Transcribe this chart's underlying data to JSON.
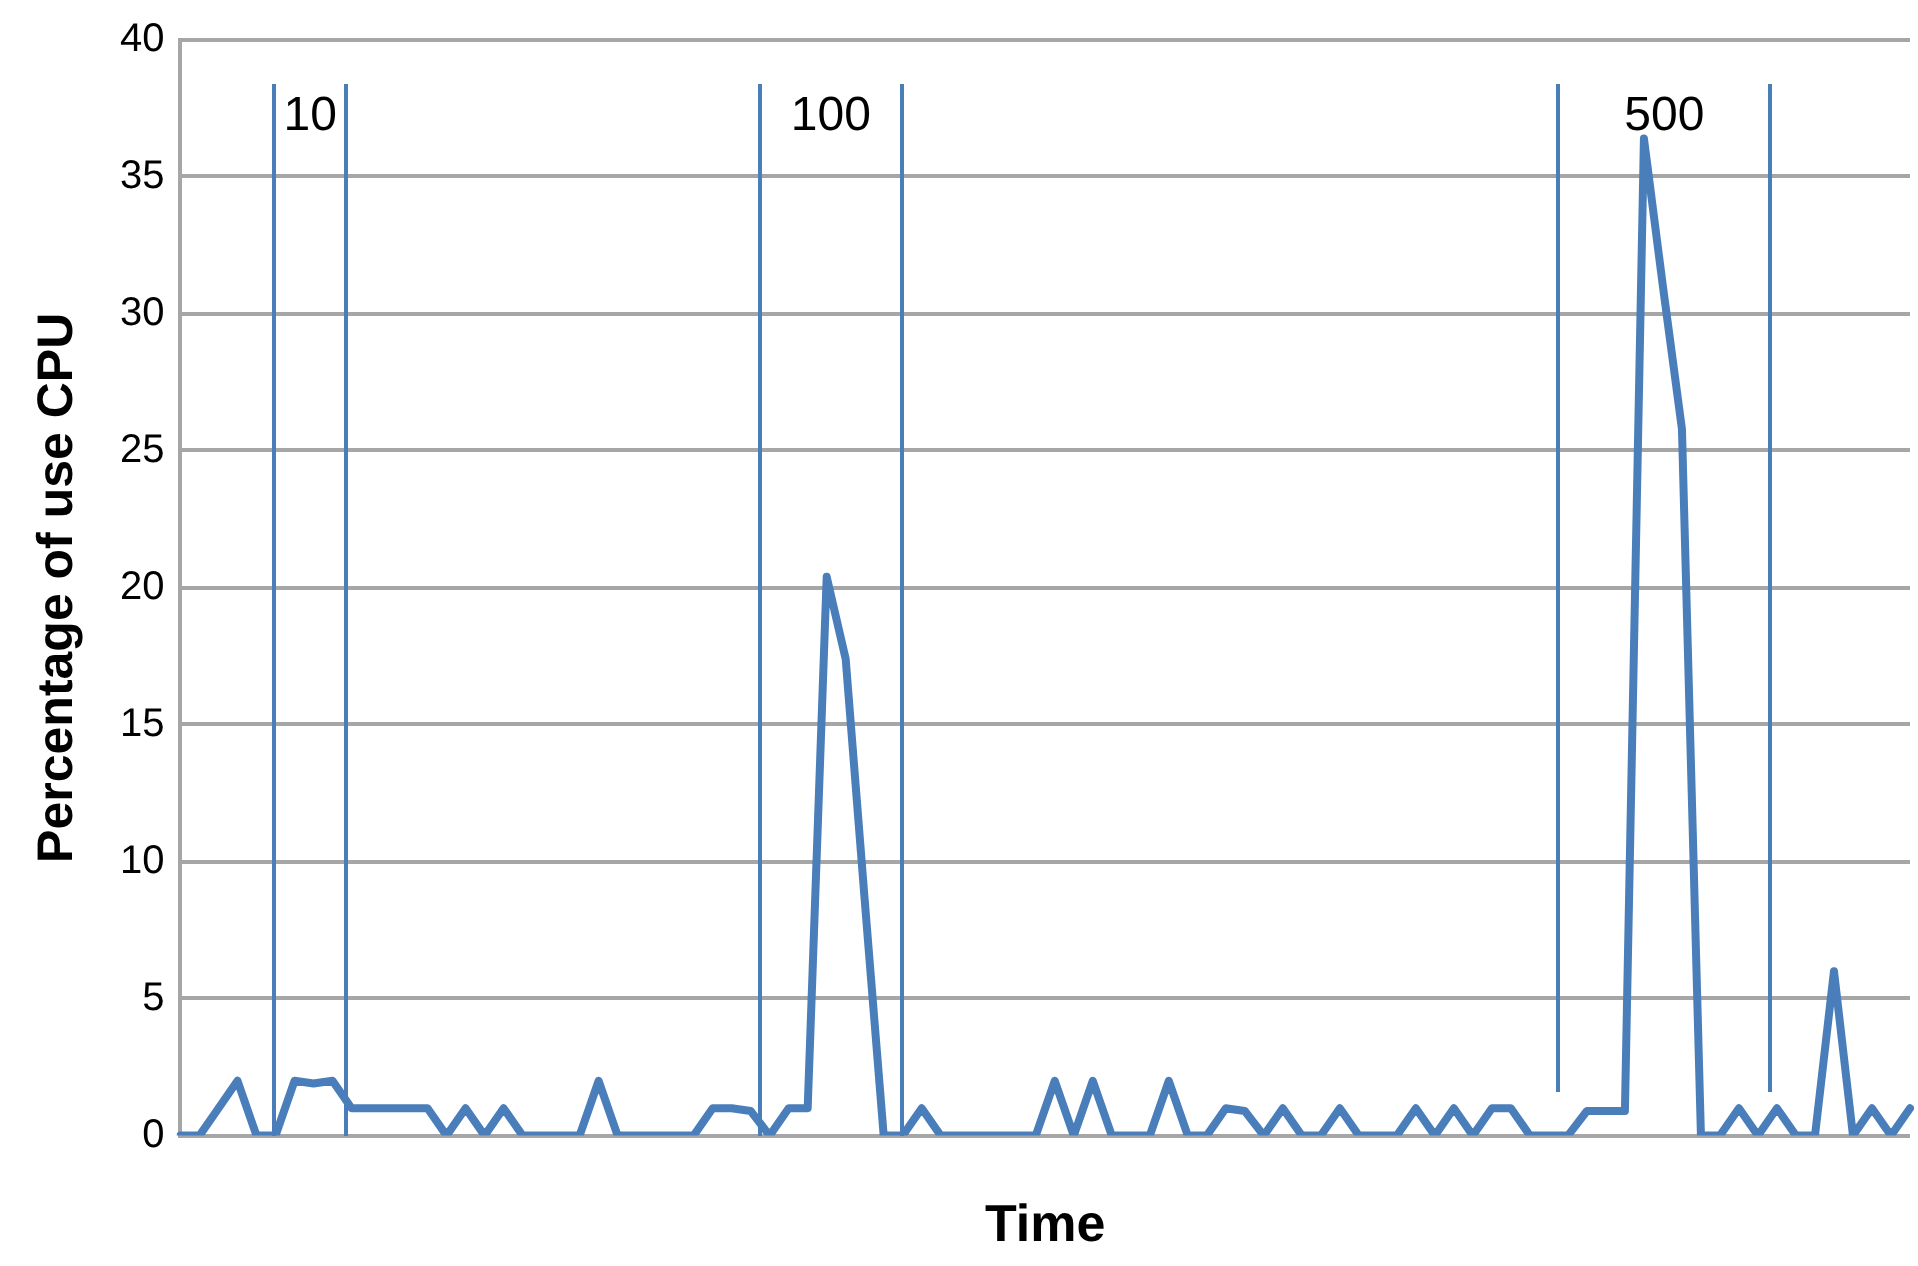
{
  "chart_data": {
    "type": "line",
    "xlabel": "Time",
    "ylabel": "Percentage of use CPU",
    "categories": [
      null,
      null,
      null,
      null,
      null,
      null,
      null,
      null,
      null,
      null,
      null,
      null,
      null,
      null,
      null,
      null,
      null,
      null,
      null,
      null,
      null,
      null,
      null,
      null,
      null,
      null,
      null,
      null,
      null,
      null,
      null,
      null,
      null,
      null,
      null,
      null,
      null,
      null,
      null,
      null,
      null,
      null,
      null,
      null,
      null,
      null,
      null,
      null,
      null,
      null,
      null,
      null,
      null,
      null,
      null,
      null,
      null,
      null,
      null,
      null,
      null,
      null,
      null,
      null,
      null,
      null,
      null,
      null,
      null,
      null,
      null,
      null,
      null,
      null,
      null,
      null,
      null,
      null,
      null,
      null,
      null,
      null,
      null,
      null,
      null,
      null,
      null,
      null,
      null,
      null,
      null,
      null
    ],
    "series": [
      {
        "color": "#4a7ebb",
        "values": [
          0,
          0,
          1,
          2,
          0,
          0,
          2,
          1.9,
          2,
          1,
          1,
          1,
          1,
          1,
          0,
          1,
          0,
          1,
          0,
          0,
          0,
          0,
          2,
          0,
          0,
          0,
          0,
          0,
          1,
          1,
          0.9,
          0,
          1,
          1,
          20.4,
          17.4,
          8.6,
          0,
          0,
          1,
          0,
          0,
          0,
          0,
          0,
          0,
          2,
          0,
          2,
          0,
          0,
          0,
          2,
          0,
          0,
          1,
          0.9,
          0,
          1,
          0,
          0,
          1,
          0,
          0,
          0,
          1,
          0,
          1,
          0,
          1,
          1,
          0,
          0,
          0,
          0.9,
          0.9,
          0.9,
          36.4,
          31,
          25.8,
          0,
          0,
          1,
          0,
          1,
          0,
          0,
          6,
          0,
          1,
          0,
          1
        ]
      }
    ],
    "ylim": [
      0,
      40
    ],
    "yticks": [
      0,
      5,
      10,
      15,
      20,
      25,
      30,
      35,
      40
    ],
    "tick_labels": "y",
    "grid": "y",
    "legend": false,
    "marker": "none",
    "line_style": "solid",
    "annotations": [
      "10",
      "100",
      "500"
    ]
  }
}
